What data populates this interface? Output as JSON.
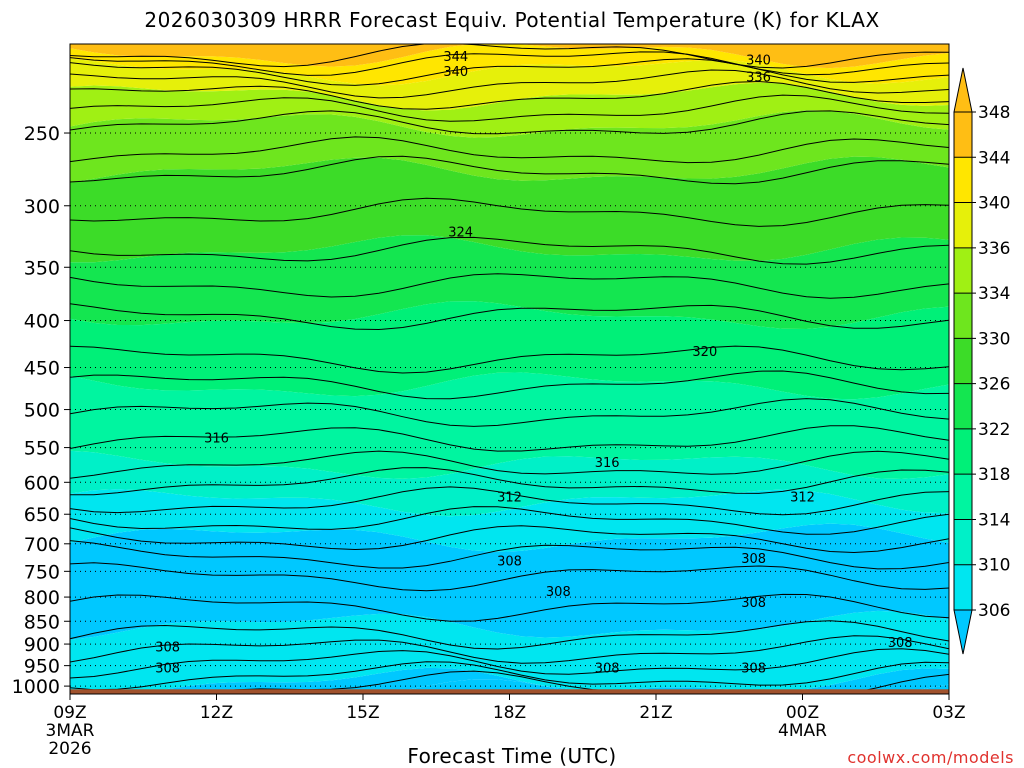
{
  "chart_data": {
    "type": "contour",
    "title": "2026030309 HRRR Forecast Equiv. Potential Temperature (K) for KLAX",
    "xlabel": "Forecast Time (UTC)",
    "ylabel": "",
    "x_ticks": [
      {
        "label": "09Z",
        "sub": [
          "3MAR",
          "2026"
        ],
        "hours": 0
      },
      {
        "label": "12Z",
        "sub": [],
        "hours": 3
      },
      {
        "label": "15Z",
        "sub": [],
        "hours": 6
      },
      {
        "label": "18Z",
        "sub": [],
        "hours": 9
      },
      {
        "label": "21Z",
        "sub": [],
        "hours": 12
      },
      {
        "label": "00Z",
        "sub": [
          "4MAR"
        ],
        "hours": 15
      },
      {
        "label": "03Z",
        "sub": [],
        "hours": 18
      }
    ],
    "y_ticks": [
      250,
      300,
      350,
      400,
      450,
      500,
      550,
      600,
      650,
      700,
      750,
      800,
      850,
      900,
      950,
      1000
    ],
    "xlim": [
      0,
      18
    ],
    "ylim": [
      1020,
      200
    ],
    "y_scale": "log",
    "grid": "dotted horizontal at pressure ticks",
    "colorbar": {
      "levels": [
        306,
        310,
        314,
        318,
        322,
        326,
        330,
        334,
        336,
        340,
        344,
        348
      ],
      "colors": [
        "#00c8ff",
        "#00e6f0",
        "#00f0c8",
        "#00f5a0",
        "#00f078",
        "#14e650",
        "#3cdc28",
        "#6ee61e",
        "#a0f014",
        "#e6f00a",
        "#ffe600",
        "#ffbe14"
      ],
      "extend": "both"
    },
    "contour_labels": [
      {
        "text": "344",
        "x": 7.9,
        "p": 206
      },
      {
        "text": "340",
        "x": 7.9,
        "p": 214
      },
      {
        "text": "340",
        "x": 14.1,
        "p": 208
      },
      {
        "text": "336",
        "x": 14.1,
        "p": 217
      },
      {
        "text": "324",
        "x": 8.0,
        "p": 320
      },
      {
        "text": "320",
        "x": 13.0,
        "p": 432
      },
      {
        "text": "316",
        "x": 3.0,
        "p": 536
      },
      {
        "text": "316",
        "x": 11.0,
        "p": 570
      },
      {
        "text": "312",
        "x": 9.0,
        "p": 622
      },
      {
        "text": "312",
        "x": 15.0,
        "p": 622
      },
      {
        "text": "308",
        "x": 9.0,
        "p": 730
      },
      {
        "text": "308",
        "x": 14.0,
        "p": 725
      },
      {
        "text": "308",
        "x": 10.0,
        "p": 788
      },
      {
        "text": "308",
        "x": 14.0,
        "p": 810
      },
      {
        "text": "308",
        "x": 2.0,
        "p": 905
      },
      {
        "text": "308",
        "x": 17.0,
        "p": 895
      },
      {
        "text": "308",
        "x": 2.0,
        "p": 955
      },
      {
        "text": "308",
        "x": 11.0,
        "p": 955
      },
      {
        "text": "308",
        "x": 14.0,
        "p": 955
      }
    ],
    "terrain_color": "#a0522d"
  },
  "credit": "coolwx.com/models"
}
